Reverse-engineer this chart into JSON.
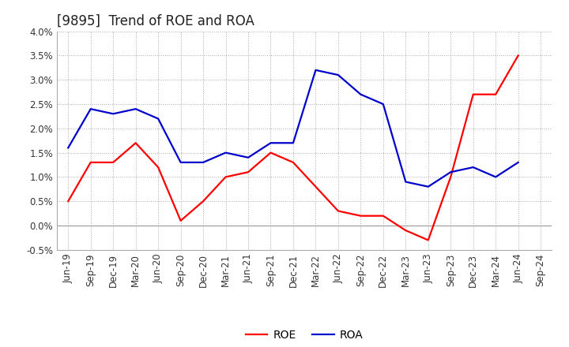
{
  "title": "[9895]  Trend of ROE and ROA",
  "labels": [
    "Jun-19",
    "Sep-19",
    "Dec-19",
    "Mar-20",
    "Jun-20",
    "Sep-20",
    "Dec-20",
    "Mar-21",
    "Jun-21",
    "Sep-21",
    "Dec-21",
    "Mar-22",
    "Jun-22",
    "Sep-22",
    "Dec-22",
    "Mar-23",
    "Jun-23",
    "Sep-23",
    "Dec-23",
    "Mar-24",
    "Jun-24",
    "Sep-24"
  ],
  "ROE": [
    0.005,
    0.013,
    0.013,
    0.017,
    0.012,
    0.001,
    0.005,
    0.01,
    0.011,
    0.015,
    0.013,
    0.008,
    0.003,
    0.002,
    0.002,
    -0.001,
    -0.003,
    0.01,
    0.027,
    0.027,
    0.035,
    null
  ],
  "ROA": [
    0.016,
    0.024,
    0.023,
    0.024,
    0.022,
    0.013,
    0.013,
    0.015,
    0.014,
    0.017,
    0.017,
    0.032,
    0.031,
    0.027,
    0.025,
    0.009,
    0.008,
    0.011,
    0.012,
    0.01,
    0.013,
    null
  ],
  "ylim": [
    -0.005,
    0.04
  ],
  "ytick_vals": [
    -0.005,
    0.0,
    0.005,
    0.01,
    0.015,
    0.02,
    0.025,
    0.03,
    0.035,
    0.04
  ],
  "ytick_labels": [
    "-0.5%",
    "0.0%",
    "0.5%",
    "1.0%",
    "1.5%",
    "2.0%",
    "2.5%",
    "3.0%",
    "3.5%",
    "4.0%"
  ],
  "roe_color": "#ff0000",
  "roa_color": "#0000cc",
  "background_color": "#ffffff",
  "grid_color": "#aaaaaa",
  "title_fontsize": 12,
  "legend_fontsize": 10,
  "tick_fontsize": 8.5,
  "linewidth": 1.6
}
